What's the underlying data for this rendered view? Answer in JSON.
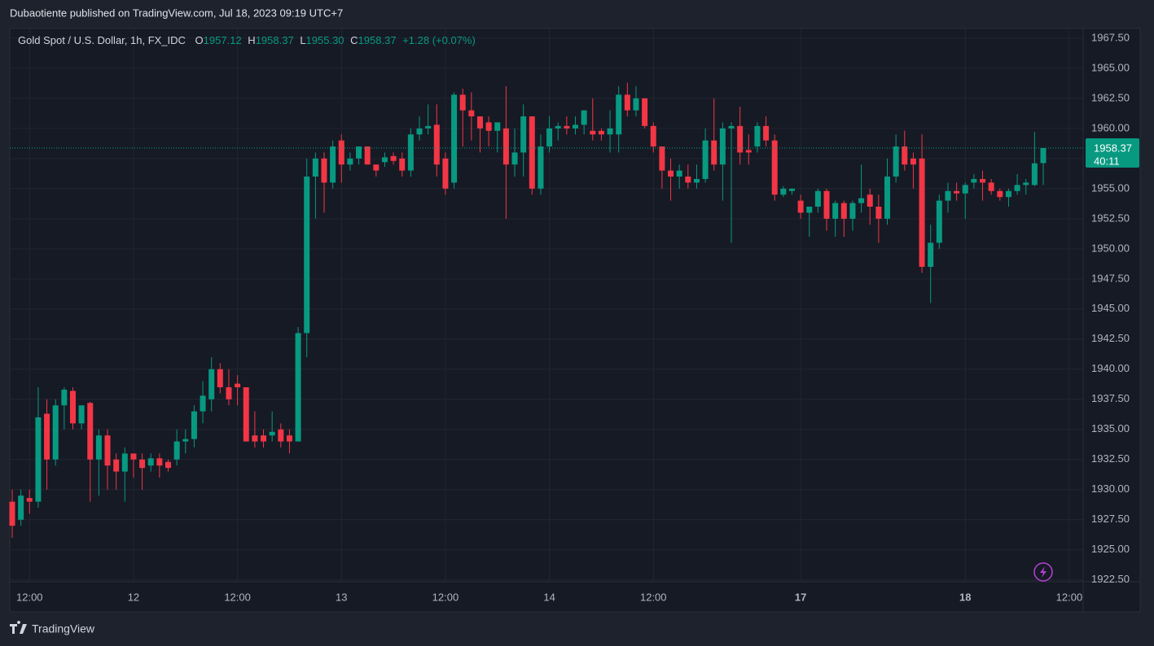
{
  "header": {
    "text": "Dubaotiente published on TradingView.com, Jul 18, 2023 09:19 UTC+7"
  },
  "footer": {
    "brand": "TradingView"
  },
  "chart_data": {
    "type": "candlestick",
    "title": "Gold Spot / U.S. Dollar, 1h, FX_IDC",
    "legend": {
      "o_label": "O",
      "o": "1957.12",
      "h_label": "H",
      "h": "1958.37",
      "l_label": "L",
      "l": "1955.30",
      "c_label": "C",
      "c": "1958.37",
      "change": "+1.28 (+0.07%)"
    },
    "up_color": "#089981",
    "down_color": "#f23645",
    "categories": [
      null,
      null,
      "12:00",
      null,
      null,
      null,
      null,
      null,
      null,
      null,
      null,
      null,
      null,
      null,
      "12",
      null,
      null,
      null,
      null,
      null,
      null,
      null,
      null,
      null,
      null,
      null,
      "12:00",
      null,
      null,
      null,
      null,
      null,
      null,
      null,
      null,
      null,
      null,
      null,
      "13",
      null,
      null,
      null,
      null,
      null,
      null,
      null,
      null,
      null,
      null,
      null,
      "12:00",
      null,
      null,
      null,
      null,
      null,
      null,
      null,
      null,
      null,
      null,
      null,
      "14",
      null,
      null,
      null,
      null,
      null,
      null,
      null,
      null,
      null,
      null,
      null,
      "12:00",
      null,
      null,
      null,
      null,
      null,
      null,
      null,
      null,
      null,
      null,
      null,
      null,
      null,
      null,
      null,
      null,
      "17",
      null,
      null,
      null,
      null,
      null,
      null,
      null,
      null,
      null,
      null,
      null,
      null,
      null,
      null,
      null,
      null,
      null,
      null,
      "18",
      null,
      null,
      null,
      null,
      null,
      null,
      null,
      null,
      null,
      null,
      null,
      "12:00"
    ],
    "open": [
      1929,
      1927.5,
      1929.3,
      1929,
      1936.3,
      1932.5,
      1937,
      1938.2,
      1935.5,
      1937.2,
      1932.5,
      1934.5,
      1932.5,
      1931.5,
      1933,
      1932.5,
      1932,
      1932.6,
      1932.3,
      1932.5,
      1934,
      1934.2,
      1936.5,
      1937.5,
      1940,
      1938.5,
      1938.8,
      1938.5,
      1934.5,
      1934.5,
      1934.5,
      1935,
      1934.5,
      1934,
      1943,
      1956,
      1957.5,
      1955.5,
      1959,
      1957,
      1957.5,
      1958.5,
      1957,
      1957.2,
      1957.7,
      1957.5,
      1956.5,
      1959.5,
      1960,
      1960.3,
      1957.5,
      1955.5,
      1962.8,
      1961.5,
      1961,
      1960.5,
      1959.8,
      1960,
      1957,
      1958,
      1961,
      1955,
      1958.5,
      1960,
      1960.2,
      1960,
      1960.3,
      1959.8,
      1959.8,
      1959.5,
      1959.5,
      1962.8,
      1961.5,
      1962.5,
      1960.2,
      1958.5,
      1956.5,
      1956,
      1956,
      1955.5,
      1955.8,
      1959,
      1957,
      1960,
      1960.2,
      1958.2,
      1958.5,
      1960.2,
      1959,
      1954.5,
      1954.8,
      1954,
      1953,
      1953.5,
      1954.8,
      1952.5,
      1953.8,
      1952.5,
      1953.8,
      1954.5,
      1953.5,
      1952.5,
      1956,
      1958.5,
      1957.5,
      1957.5,
      1948.5,
      1950.5,
      1954,
      1954.8,
      1954.6,
      1955.5,
      1955.8,
      1955.5,
      1954.8,
      1954.3,
      1954.8,
      1955.3,
      1955.3,
      1957.12,
      null,
      null,
      null
    ],
    "high": [
      1930,
      1930,
      1930,
      1938.5,
      1937.5,
      1937.5,
      1938.5,
      1938.5,
      1937,
      1937.3,
      1935,
      1935,
      1933,
      1933.5,
      1933,
      1933,
      1933,
      1933,
      1932.5,
      1935,
      1935,
      1937,
      1939,
      1941,
      1940.5,
      1940,
      1939.5,
      1938.5,
      1936.5,
      1935,
      1936.5,
      1935.5,
      1935,
      1943.5,
      1957.5,
      1958,
      1958,
      1959,
      1959.5,
      1958,
      1958.5,
      1958.5,
      1957,
      1958,
      1958,
      1958,
      1960,
      1961,
      1962,
      1962,
      1958,
      1963,
      1963.3,
      1963,
      1961,
      1961,
      1960.5,
      1963.5,
      1960,
      1962,
      1961,
      1959.5,
      1961,
      1960.5,
      1961,
      1961,
      1961.5,
      1962.5,
      1960,
      1961.5,
      1963.5,
      1963.8,
      1963.5,
      1962.5,
      1960.5,
      1958.5,
      1957.5,
      1957,
      1957,
      1957,
      1960,
      1962.5,
      1960.5,
      1960.5,
      1961.8,
      1959.5,
      1960.5,
      1961,
      1959.5,
      1955.2,
      1955,
      1954.5,
      1953.5,
      1955,
      1955,
      1954,
      1954,
      1954,
      1957,
      1955,
      1954.5,
      1957.5,
      1959.5,
      1959.8,
      1958,
      1959.5,
      1952,
      1954.5,
      1955.5,
      1955.5,
      1955.5,
      1956.2,
      1956.5,
      1955.8,
      1955,
      1955,
      1956.2,
      1955.8,
      1959.7,
      1958.37,
      null,
      null,
      null
    ],
    "low": [
      1926,
      1927,
      1928,
      1928.5,
      1930,
      1932,
      1935,
      1935,
      1935,
      1929,
      1929.5,
      1930,
      1930,
      1929,
      1931,
      1930,
      1931.5,
      1931,
      1931.5,
      1932,
      1933,
      1933.5,
      1935.5,
      1936.5,
      1938,
      1937,
      1937,
      1934,
      1933.5,
      1933.5,
      1934,
      1933.5,
      1933,
      1934,
      1941,
      1952.5,
      1953,
      1955,
      1955.5,
      1956.5,
      1957,
      1957,
      1956,
      1956.8,
      1957,
      1956,
      1956,
      1959,
      1959.5,
      1956,
      1954.5,
      1955,
      1958.5,
      1959,
      1958,
      1958.5,
      1958,
      1952.5,
      1956,
      1956,
      1954.5,
      1954.5,
      1958,
      1959,
      1959.5,
      1959.5,
      1959.5,
      1959,
      1959,
      1958,
      1958,
      1961,
      1961,
      1960,
      1958,
      1955,
      1954,
      1955,
      1955,
      1955,
      1955.5,
      1956.5,
      1954,
      1950.5,
      1957,
      1957,
      1958,
      1958.5,
      1954,
      1954.3,
      1954.5,
      1952.5,
      1951,
      1953,
      1951.5,
      1951,
      1951,
      1951.5,
      1953,
      1952,
      1950.5,
      1952,
      1955.5,
      1956.5,
      1955,
      1948,
      1945.5,
      1950,
      1953,
      1954,
      1952.5,
      1955,
      1954,
      1954.5,
      1954,
      1953.5,
      1954.5,
      1954.5,
      1955.2,
      1955.3,
      null,
      null,
      null
    ],
    "close": [
      1927,
      1929.5,
      1929,
      1936,
      1932.5,
      1937,
      1938.3,
      1935.5,
      1937,
      1932.5,
      1934.5,
      1932,
      1931.5,
      1933,
      1932.5,
      1931.8,
      1932.6,
      1932,
      1931.8,
      1934,
      1934.2,
      1936.5,
      1937.8,
      1940,
      1938.5,
      1937.5,
      1938.5,
      1934,
      1934,
      1934,
      1934.8,
      1934,
      1934,
      1943,
      1956,
      1957.5,
      1955.5,
      1958.5,
      1957,
      1957.5,
      1958.5,
      1957,
      1956.5,
      1957.6,
      1957.3,
      1956.5,
      1959.5,
      1960,
      1960.2,
      1957,
      1955,
      1962.8,
      1961.5,
      1961,
      1960,
      1959.8,
      1960.5,
      1957,
      1958,
      1961,
      1955,
      1958.5,
      1960,
      1960.2,
      1960,
      1960.3,
      1961.5,
      1959.5,
      1959.5,
      1960,
      1962.8,
      1961.5,
      1962.5,
      1960.2,
      1958.5,
      1956.5,
      1956,
      1956.5,
      1955.5,
      1955.8,
      1959,
      1957,
      1960,
      1960.2,
      1958,
      1958,
      1960.2,
      1959,
      1954.5,
      1955,
      1955,
      1953,
      1953.5,
      1954.8,
      1952.5,
      1953.8,
      1952.5,
      1953.8,
      1954.2,
      1953.5,
      1952.5,
      1956,
      1958.5,
      1957,
      1957,
      1948.5,
      1950.5,
      1954,
      1954.8,
      1954.6,
      1955.3,
      1955.8,
      1955.5,
      1954.8,
      1954.3,
      1954.8,
      1955.3,
      1955.5,
      1957.1,
      1958.37,
      null,
      null,
      null
    ],
    "ylim": [
      1922.35,
      1968.3
    ],
    "yticks": [
      {
        "value": 1922.5,
        "label": "1922.50"
      },
      {
        "value": 1925,
        "label": "1925.00"
      },
      {
        "value": 1927.5,
        "label": "1927.50"
      },
      {
        "value": 1930,
        "label": "1930.00"
      },
      {
        "value": 1932.5,
        "label": "1932.50"
      },
      {
        "value": 1935,
        "label": "1935.00"
      },
      {
        "value": 1937.5,
        "label": "1937.50"
      },
      {
        "value": 1940,
        "label": "1940.00"
      },
      {
        "value": 1942.5,
        "label": "1942.50"
      },
      {
        "value": 1945,
        "label": "1945.00"
      },
      {
        "value": 1947.5,
        "label": "1947.50"
      },
      {
        "value": 1950,
        "label": "1950.00"
      },
      {
        "value": 1952.5,
        "label": "1952.50"
      },
      {
        "value": 1955,
        "label": "1955.00"
      },
      {
        "value": 1957.5,
        "label": "1957.50"
      },
      {
        "value": 1960,
        "label": "1960.00"
      },
      {
        "value": 1962.5,
        "label": "1962.50"
      },
      {
        "value": 1965,
        "label": "1965.00"
      },
      {
        "value": 1967.5,
        "label": "1967.50"
      }
    ],
    "grid": true,
    "last_price": 1958.37,
    "countdown": "40:11"
  }
}
